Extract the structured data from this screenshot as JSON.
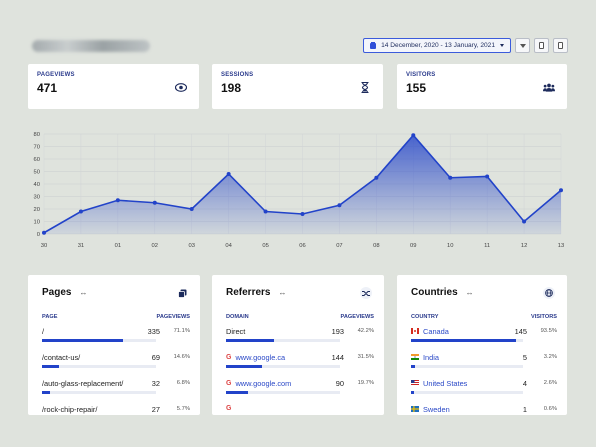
{
  "toolbar": {
    "date_range": "14 December, 2020 - 13 January, 2021",
    "icons": [
      "calendar-icon",
      "filter-icon",
      "document-icon",
      "document-icon"
    ]
  },
  "stats": [
    {
      "label": "PAGEVIEWS",
      "value": "471",
      "icon": "eye-icon"
    },
    {
      "label": "SESSIONS",
      "value": "198",
      "icon": "hourglass-icon"
    },
    {
      "label": "VISITORS",
      "value": "155",
      "icon": "users-icon"
    }
  ],
  "chart_data": {
    "type": "area",
    "x": [
      "30",
      "31",
      "01",
      "02",
      "03",
      "04",
      "05",
      "06",
      "07",
      "08",
      "09",
      "10",
      "11",
      "12",
      "13"
    ],
    "values": [
      1,
      18,
      27,
      25,
      20,
      48,
      18,
      16,
      23,
      45,
      79,
      45,
      46,
      10,
      35
    ],
    "yticks": [
      "0",
      "10",
      "20",
      "30",
      "40",
      "50",
      "60",
      "70",
      "80"
    ],
    "ylim": [
      0,
      80
    ],
    "grid": true,
    "color": "#2243c9"
  },
  "pages": {
    "title": "Pages",
    "col_left": "PAGE",
    "col_right": "PAGEVIEWS",
    "rows": [
      {
        "name": "/",
        "value": "335",
        "pct": "71.1%",
        "fraction": 0.711
      },
      {
        "name": "/contact-us/",
        "value": "69",
        "pct": "14.6%",
        "fraction": 0.146
      },
      {
        "name": "/auto-glass-replacement/",
        "value": "32",
        "pct": "6.8%",
        "fraction": 0.068
      },
      {
        "name": "/rock-chip-repair/",
        "value": "27",
        "pct": "5.7%",
        "fraction": 0.057
      }
    ]
  },
  "referrers": {
    "title": "Referrers",
    "col_left": "DOMAIN",
    "col_right": "PAGEVIEWS",
    "rows": [
      {
        "name": "Direct",
        "value": "193",
        "pct": "42.2%",
        "fraction": 0.422,
        "link": false
      },
      {
        "name": "www.google.ca",
        "value": "144",
        "pct": "31.5%",
        "fraction": 0.315,
        "link": true
      },
      {
        "name": "www.google.com",
        "value": "90",
        "pct": "19.7%",
        "fraction": 0.197,
        "link": true
      },
      {
        "name": "",
        "value": "",
        "pct": "",
        "fraction": 0.03,
        "link": true
      }
    ]
  },
  "countries": {
    "title": "Countries",
    "col_left": "COUNTRY",
    "col_right": "VISITORS",
    "rows": [
      {
        "name": "Canada",
        "value": "145",
        "pct": "93.5%",
        "fraction": 0.935,
        "flag": "canada"
      },
      {
        "name": "India",
        "value": "5",
        "pct": "3.2%",
        "fraction": 0.032,
        "flag": "india"
      },
      {
        "name": "United States",
        "value": "4",
        "pct": "2.6%",
        "fraction": 0.026,
        "flag": "usa"
      },
      {
        "name": "Sweden",
        "value": "1",
        "pct": "0.6%",
        "fraction": 0.006,
        "flag": "sweden"
      }
    ]
  }
}
